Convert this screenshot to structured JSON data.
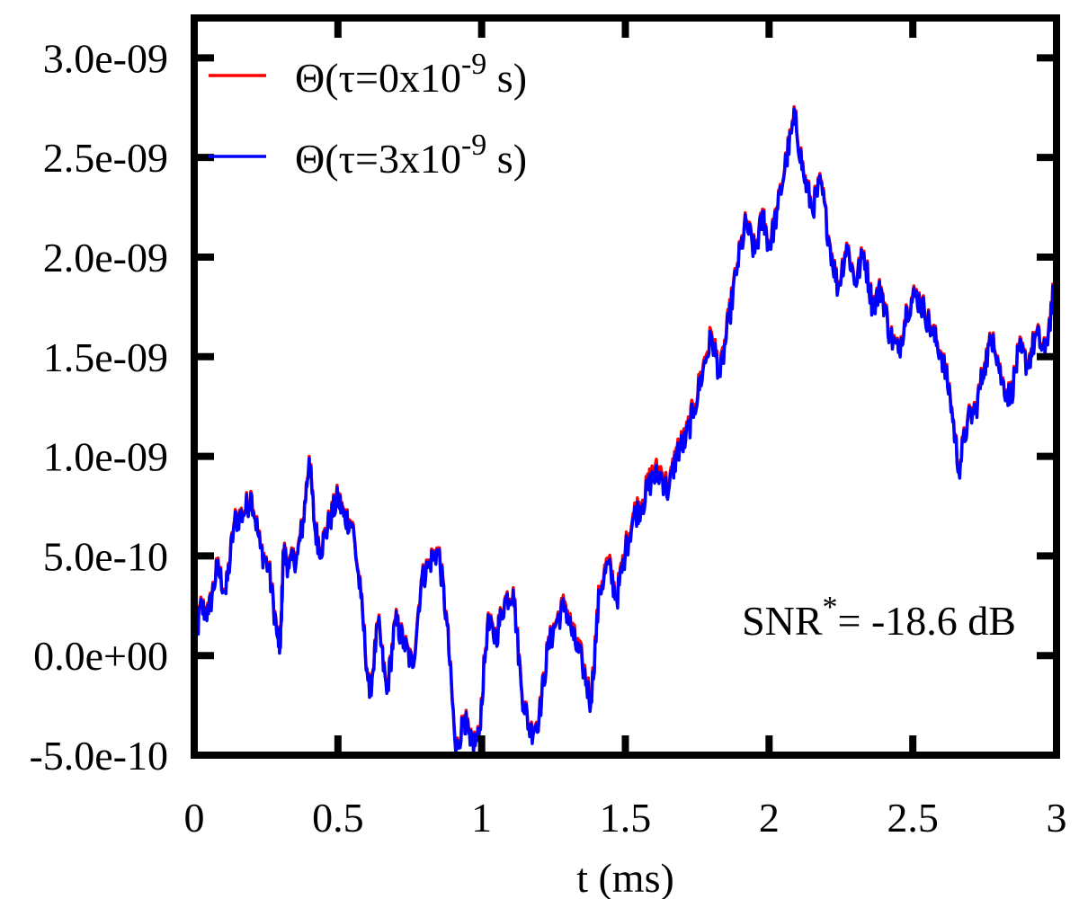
{
  "chart_data": {
    "type": "line",
    "xlabel": "t (ms)",
    "ylabel": "",
    "xlim": [
      0,
      3
    ],
    "ylim": [
      -5e-10,
      3.2e-09
    ],
    "xticks": [
      0,
      0.5,
      1,
      1.5,
      2,
      2.5,
      3
    ],
    "xtick_labels": [
      "0",
      "0.5",
      "1",
      "1.5",
      "2",
      "2.5",
      "3"
    ],
    "yticks": [
      -5e-10,
      0,
      5e-10,
      1e-09,
      1.5e-09,
      2e-09,
      2.5e-09,
      3e-09
    ],
    "ytick_labels": [
      "-5.0e-10",
      "0.0e+00",
      "5.0e-10",
      "1.0e-09",
      "1.5e-09",
      "2.0e-09",
      "2.5e-09",
      "3.0e-09"
    ],
    "grid": false,
    "legend": {
      "position": "top-left",
      "entries": [
        {
          "prefix": "Θ(τ=0x10",
          "exp": "-9",
          "suffix": " s)"
        },
        {
          "prefix": "Θ(τ=3x10",
          "exp": "-9",
          "suffix": " s)"
        }
      ]
    },
    "annotation": {
      "prefix": "SNR",
      "sup": "*",
      "suffix": "= -18.6 dB"
    },
    "series": [
      {
        "name": "Θ(τ=0x10^-9 s)",
        "color": "#ff0000",
        "x": [
          0,
          0.02,
          0.05,
          0.08,
          0.11,
          0.14,
          0.17,
          0.2,
          0.23,
          0.26,
          0.29,
          0.3,
          0.31,
          0.33,
          0.36,
          0.38,
          0.4,
          0.42,
          0.44,
          0.47,
          0.5,
          0.52,
          0.55,
          0.58,
          0.61,
          0.64,
          0.67,
          0.7,
          0.73,
          0.76,
          0.79,
          0.82,
          0.85,
          0.88,
          0.91,
          0.94,
          0.96,
          0.99,
          1.02,
          1.05,
          1.08,
          1.11,
          1.14,
          1.17,
          1.2,
          1.23,
          1.26,
          1.29,
          1.32,
          1.35,
          1.38,
          1.41,
          1.44,
          1.47,
          1.5,
          1.53,
          1.56,
          1.59,
          1.62,
          1.65,
          1.68,
          1.71,
          1.74,
          1.77,
          1.8,
          1.83,
          1.86,
          1.89,
          1.92,
          1.95,
          1.98,
          2.0,
          2.03,
          2.06,
          2.09,
          2.12,
          2.15,
          2.18,
          2.21,
          2.24,
          2.27,
          2.3,
          2.33,
          2.36,
          2.39,
          2.42,
          2.45,
          2.48,
          2.51,
          2.54,
          2.57,
          2.6,
          2.63,
          2.66,
          2.69,
          2.72,
          2.75,
          2.78,
          2.81,
          2.84,
          2.87,
          2.9,
          2.93,
          2.96,
          2.99
        ],
        "y": [
          -4e-11,
          2.5e-10,
          2.2e-10,
          4.5e-10,
          3.2e-10,
          6.8e-10,
          7.2e-10,
          8.1e-10,
          5.5e-10,
          4.4e-10,
          1e-10,
          5e-11,
          5.3e-10,
          4.5e-10,
          5.2e-10,
          6.9e-10,
          1e-09,
          6.4e-10,
          5.4e-10,
          6.8e-10,
          8e-10,
          7.1e-10,
          6.7e-10,
          3e-10,
          -2e-10,
          1.7e-10,
          -1.8e-10,
          1.8e-10,
          7e-11,
          -5e-11,
          3.8e-10,
          4.8e-10,
          5.4e-10,
          1.6e-10,
          -4.8e-10,
          -3e-10,
          -4.4e-10,
          -4.1e-10,
          1.6e-10,
          1e-10,
          2.8e-10,
          3.4e-10,
          -1.8e-10,
          -3.8e-10,
          -3e-10,
          4e-11,
          1.8e-10,
          2.7e-10,
          1e-10,
          -2e-11,
          -2.2e-10,
          3.4e-10,
          4.8e-10,
          3e-10,
          5.4e-10,
          7.2e-10,
          7.8e-10,
          9.1e-10,
          9.4e-10,
          8.4e-10,
          1.04e-09,
          1.1e-09,
          1.26e-09,
          1.45e-09,
          1.62e-09,
          1.42e-09,
          1.7e-09,
          1.97e-09,
          2.18e-09,
          2.03e-09,
          2.22e-09,
          2.05e-09,
          2.25e-09,
          2.5e-09,
          2.71e-09,
          2.42e-09,
          2.25e-09,
          2.38e-09,
          2.08e-09,
          1.85e-09,
          2.07e-09,
          1.88e-09,
          2.03e-09,
          1.76e-09,
          1.85e-09,
          1.62e-09,
          1.53e-09,
          1.75e-09,
          1.82e-09,
          1.74e-09,
          1.62e-09,
          1.52e-09,
          1.31e-09,
          9.4e-10,
          1.18e-09,
          1.25e-09,
          1.47e-09,
          1.62e-09,
          1.38e-09,
          1.3e-09,
          1.54e-09,
          1.47e-09,
          1.62e-09,
          1.52e-09,
          1.83e-09
        ]
      },
      {
        "name": "Θ(τ=3x10^-9 s)",
        "color": "#0000ff",
        "x": [
          0,
          0.02,
          0.05,
          0.08,
          0.11,
          0.14,
          0.17,
          0.2,
          0.23,
          0.26,
          0.29,
          0.3,
          0.31,
          0.33,
          0.36,
          0.38,
          0.4,
          0.42,
          0.44,
          0.47,
          0.5,
          0.52,
          0.55,
          0.58,
          0.61,
          0.64,
          0.67,
          0.7,
          0.73,
          0.76,
          0.79,
          0.82,
          0.85,
          0.88,
          0.91,
          0.94,
          0.96,
          0.99,
          1.02,
          1.05,
          1.08,
          1.11,
          1.14,
          1.17,
          1.2,
          1.23,
          1.26,
          1.29,
          1.32,
          1.35,
          1.38,
          1.41,
          1.44,
          1.47,
          1.5,
          1.53,
          1.56,
          1.59,
          1.62,
          1.65,
          1.68,
          1.71,
          1.74,
          1.77,
          1.8,
          1.83,
          1.86,
          1.89,
          1.92,
          1.95,
          1.98,
          2.0,
          2.03,
          2.06,
          2.09,
          2.12,
          2.15,
          2.18,
          2.21,
          2.24,
          2.27,
          2.3,
          2.33,
          2.36,
          2.39,
          2.42,
          2.45,
          2.48,
          2.51,
          2.54,
          2.57,
          2.6,
          2.63,
          2.66,
          2.69,
          2.72,
          2.75,
          2.78,
          2.81,
          2.84,
          2.87,
          2.9,
          2.93,
          2.96,
          2.99
        ],
        "y": [
          -5e-11,
          2.4e-10,
          2.1e-10,
          4.4e-10,
          3.1e-10,
          6.7e-10,
          7.1e-10,
          8e-10,
          5.4e-10,
          4.3e-10,
          9e-11,
          4e-11,
          5.2e-10,
          4.4e-10,
          5.1e-10,
          6.8e-10,
          9.9e-10,
          6.3e-10,
          5.3e-10,
          6.7e-10,
          7.9e-10,
          7e-10,
          6.6e-10,
          2.9e-10,
          -2.1e-10,
          1.6e-10,
          -1.9e-10,
          1.7e-10,
          6e-11,
          -6e-11,
          3.7e-10,
          4.7e-10,
          5.3e-10,
          1.5e-10,
          -4.9e-10,
          -3.1e-10,
          -4.5e-10,
          -4.2e-10,
          1.5e-10,
          9e-11,
          2.7e-10,
          3.3e-10,
          -1.9e-10,
          -3.9e-10,
          -3.1e-10,
          3e-11,
          1.7e-10,
          2.5e-10,
          8e-11,
          -4e-11,
          -2.4e-10,
          3.2e-10,
          4.6e-10,
          2.8e-10,
          5.2e-10,
          7e-10,
          7.6e-10,
          8.8e-10,
          9.1e-10,
          8.2e-10,
          1.02e-09,
          1.08e-09,
          1.24e-09,
          1.43e-09,
          1.6e-09,
          1.4e-09,
          1.68e-09,
          1.96e-09,
          2.17e-09,
          2.02e-09,
          2.21e-09,
          2.04e-09,
          2.24e-09,
          2.49e-09,
          2.7e-09,
          2.41e-09,
          2.24e-09,
          2.37e-09,
          2.07e-09,
          1.84e-09,
          2.06e-09,
          1.87e-09,
          2.02e-09,
          1.75e-09,
          1.84e-09,
          1.61e-09,
          1.52e-09,
          1.74e-09,
          1.81e-09,
          1.73e-09,
          1.61e-09,
          1.51e-09,
          1.3e-09,
          9.3e-10,
          1.17e-09,
          1.24e-09,
          1.46e-09,
          1.61e-09,
          1.37e-09,
          1.29e-09,
          1.53e-09,
          1.46e-09,
          1.61e-09,
          1.51e-09,
          1.82e-09
        ]
      }
    ]
  }
}
